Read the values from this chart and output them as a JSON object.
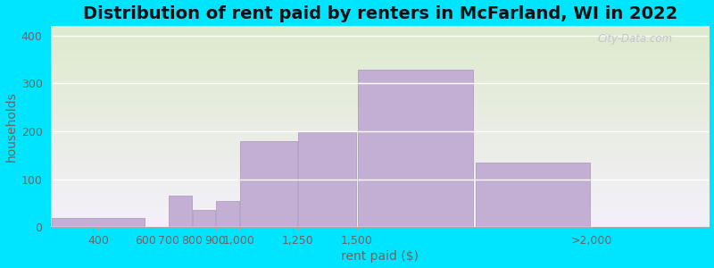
{
  "title": "Distribution of rent paid by renters in McFarland, WI in 2022",
  "xlabel": "rent paid ($)",
  "ylabel": "households",
  "bar_lefts": [
    200,
    700,
    800,
    900,
    1000,
    1250,
    1500,
    2000
  ],
  "bar_widths": [
    400,
    100,
    100,
    100,
    250,
    250,
    500,
    500
  ],
  "bar_values": [
    20,
    65,
    35,
    55,
    180,
    198,
    328,
    135
  ],
  "bar_color": "#c4afd4",
  "bar_edge_color": "#b09dc0",
  "xtick_positions": [
    400,
    600,
    700,
    800,
    900,
    1000,
    1250,
    1500,
    2500
  ],
  "xtick_labels": [
    "400",
    "600",
    "700",
    "800",
    "900",
    "1,000",
    "1,250",
    "1,500",
    ">2,000"
  ],
  "xlim": [
    200,
    3000
  ],
  "ylim": [
    0,
    420
  ],
  "yticks": [
    0,
    100,
    200,
    300,
    400
  ],
  "background_outer": "#00e5ff",
  "grad_top_color": "#deeacc",
  "grad_bottom_color": "#f4f0fa",
  "grid_color": "#ffffff",
  "title_fontsize": 14,
  "axis_label_fontsize": 10,
  "tick_fontsize": 9,
  "tick_color": "#666666"
}
